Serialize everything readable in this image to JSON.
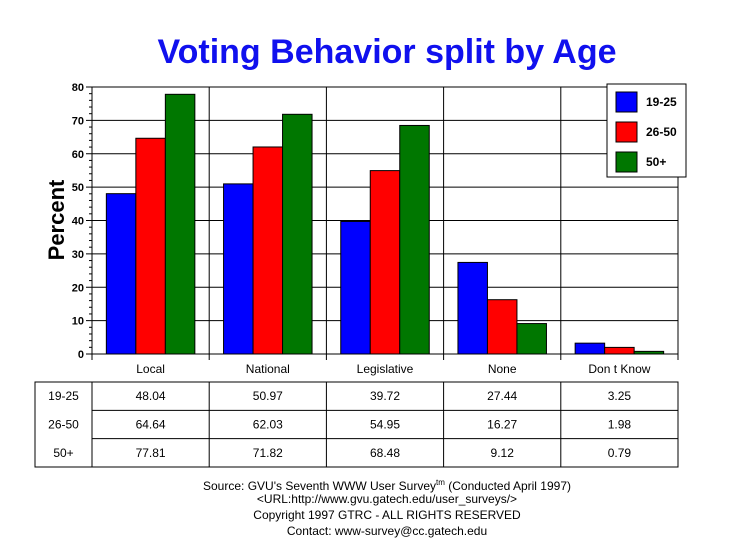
{
  "chart_data": {
    "type": "bar",
    "title": "Voting Behavior split by Age",
    "xlabel": "",
    "ylabel": "Percent",
    "ylim": [
      0,
      80
    ],
    "yticks": [
      0,
      10,
      20,
      30,
      40,
      50,
      60,
      70,
      80
    ],
    "grid": true,
    "legend_position": "top-right",
    "categories": [
      "Local",
      "National",
      "Legislative",
      "None",
      "Don t Know"
    ],
    "series": [
      {
        "name": "19-25",
        "color": "#0000ff",
        "values": [
          48.04,
          50.97,
          39.72,
          27.44,
          3.25
        ],
        "labels": [
          "48.04",
          "50.97",
          "39.72",
          "27.44",
          "3.25"
        ]
      },
      {
        "name": "26-50",
        "color": "#ff0000",
        "values": [
          64.64,
          62.03,
          54.95,
          16.27,
          1.98
        ],
        "labels": [
          "64.64",
          "62.03",
          "54.95",
          "16.27",
          "1.98"
        ]
      },
      {
        "name": "50+",
        "color": "#007700",
        "values": [
          77.81,
          71.82,
          68.48,
          9.12,
          0.79
        ],
        "labels": [
          "77.81",
          "71.82",
          "68.48",
          "9.12",
          "0.79"
        ]
      }
    ]
  },
  "footer": {
    "source_prefix": "Source: GVU's Seventh WWW User Survey",
    "source_tm": "tm",
    "source_suffix": " (Conducted April 1997)",
    "url": "<URL:http://www.gvu.gatech.edu/user_surveys/>",
    "copyright": "Copyright 1997 GTRC - ALL RIGHTS RESERVED",
    "contact": "Contact: www-survey@cc.gatech.edu"
  }
}
